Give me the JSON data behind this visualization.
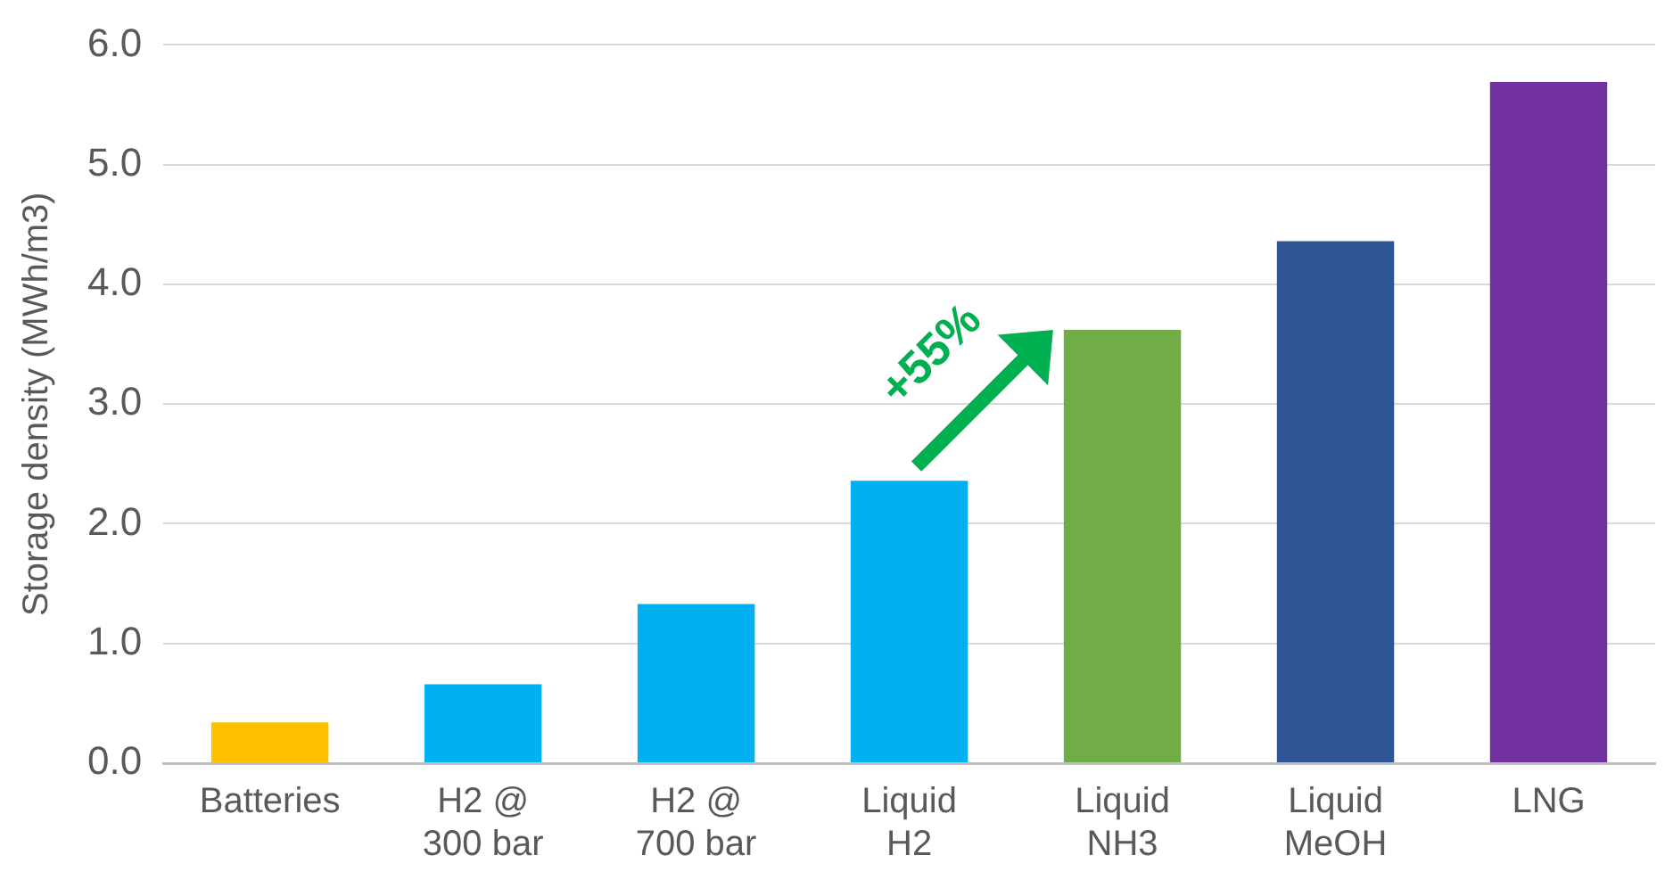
{
  "chart_data": {
    "type": "bar",
    "ylabel": "Storage density (MWh/m3)",
    "categories": [
      "Batteries",
      "H2 @\n300 bar",
      "H2 @\n700 bar",
      "Liquid\nH2",
      "Liquid\nNH3",
      "Liquid\nMeOH",
      "LNG"
    ],
    "values": [
      0.34,
      0.66,
      1.33,
      2.36,
      3.62,
      4.36,
      5.69
    ],
    "colors": [
      "#ffc000",
      "#00b0f0",
      "#00b0f0",
      "#00b0f0",
      "#70ad47",
      "#2f5597",
      "#7030a0"
    ],
    "ylim": [
      0,
      6
    ],
    "yticks": [
      {
        "value": 0,
        "label": "0.0"
      },
      {
        "value": 1,
        "label": "1.0"
      },
      {
        "value": 2,
        "label": "2.0"
      },
      {
        "value": 3,
        "label": "3.0"
      },
      {
        "value": 4,
        "label": "4.0"
      },
      {
        "value": 5,
        "label": "5.0"
      },
      {
        "value": 6,
        "label": "6.0"
      }
    ],
    "grid": "y",
    "annotations": [
      {
        "text": "+55%",
        "x": "Liquid\nNH3",
        "y": 3.62
      }
    ]
  }
}
